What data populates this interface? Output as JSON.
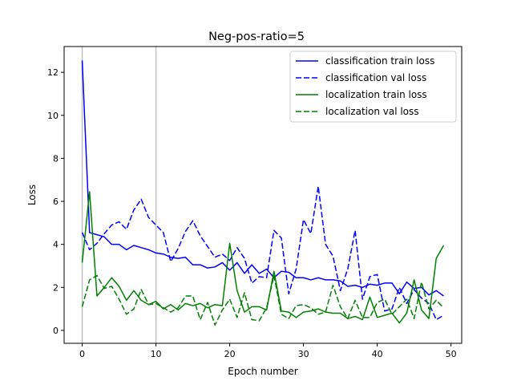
{
  "chart_data": {
    "type": "line",
    "title": "Neg-pos-ratio=5",
    "xlabel": "Epoch number",
    "ylabel": "Loss",
    "xlim": [
      -2.45,
      51.45
    ],
    "ylim": [
      -0.6,
      13.2
    ],
    "xticks": [
      0,
      10,
      20,
      30,
      40,
      50
    ],
    "yticks": [
      0,
      2,
      4,
      6,
      8,
      10,
      12
    ],
    "xtick_labels": [
      "0",
      "10",
      "20",
      "30",
      "40",
      "50"
    ],
    "ytick_labels": [
      "0",
      "2",
      "4",
      "6",
      "8",
      "10",
      "12"
    ],
    "vlines": [
      0,
      10
    ],
    "grid": false,
    "legend_position": "top-right",
    "x": [
      0,
      1,
      2,
      3,
      4,
      5,
      6,
      7,
      8,
      9,
      10,
      11,
      12,
      13,
      14,
      15,
      16,
      17,
      18,
      19,
      20,
      21,
      22,
      23,
      24,
      25,
      26,
      27,
      28,
      29,
      30,
      31,
      32,
      33,
      34,
      35,
      36,
      37,
      38,
      39,
      40,
      41,
      42,
      43,
      44,
      45,
      46,
      47,
      48,
      49
    ],
    "series": [
      {
        "name": "classification train loss",
        "color": "#0000ff",
        "dash": "solid",
        "values": [
          12.55,
          4.55,
          4.45,
          4.35,
          4.0,
          4.0,
          3.75,
          3.95,
          3.85,
          3.75,
          3.6,
          3.55,
          3.4,
          3.35,
          3.4,
          3.05,
          3.05,
          2.9,
          2.95,
          3.15,
          2.8,
          3.15,
          2.65,
          3.05,
          2.65,
          2.85,
          2.45,
          2.75,
          2.7,
          2.45,
          2.45,
          2.35,
          2.45,
          2.35,
          2.35,
          2.3,
          2.05,
          2.1,
          2.0,
          2.15,
          2.1,
          2.2,
          2.2,
          1.7,
          2.25,
          1.95,
          2.0,
          1.65,
          1.85,
          1.6
        ]
      },
      {
        "name": "classification val loss",
        "color": "#0000ff",
        "dash": "dashed",
        "values": [
          4.55,
          3.75,
          4.05,
          4.5,
          4.9,
          5.05,
          4.7,
          5.6,
          6.1,
          5.25,
          4.9,
          4.55,
          3.2,
          3.8,
          4.6,
          5.1,
          4.4,
          3.9,
          3.4,
          3.55,
          3.25,
          3.85,
          3.35,
          2.2,
          2.5,
          2.45,
          4.65,
          4.3,
          1.7,
          2.85,
          5.15,
          4.5,
          6.7,
          4.0,
          3.45,
          1.85,
          2.85,
          4.65,
          1.45,
          2.5,
          2.6,
          0.9,
          1.0,
          2.0,
          1.25,
          1.9,
          1.5,
          1.25,
          0.5,
          0.7
        ]
      },
      {
        "name": "localization train loss",
        "color": "#008000",
        "dash": "solid",
        "values": [
          3.15,
          6.45,
          1.6,
          2.0,
          2.45,
          2.05,
          1.4,
          1.85,
          1.4,
          1.2,
          1.35,
          1.0,
          1.2,
          0.95,
          1.25,
          1.15,
          1.25,
          1.05,
          1.2,
          1.15,
          4.05,
          1.85,
          0.85,
          1.1,
          1.1,
          0.95,
          2.75,
          0.9,
          0.85,
          0.6,
          0.85,
          0.9,
          1.0,
          0.85,
          0.8,
          0.8,
          0.55,
          0.65,
          0.5,
          1.55,
          0.6,
          0.7,
          0.8,
          0.35,
          0.8,
          2.35,
          0.95,
          0.55,
          3.35,
          3.95
        ]
      },
      {
        "name": "localization val loss",
        "color": "#008000",
        "dash": "dashed",
        "values": [
          1.1,
          2.35,
          2.55,
          1.95,
          2.05,
          1.45,
          0.75,
          1.0,
          1.9,
          1.2,
          1.25,
          1.05,
          0.85,
          1.05,
          1.6,
          1.6,
          0.5,
          1.3,
          0.25,
          0.95,
          1.45,
          0.6,
          1.75,
          0.5,
          0.45,
          1.05,
          2.55,
          0.75,
          0.55,
          1.15,
          1.2,
          1.05,
          0.75,
          0.85,
          2.1,
          1.1,
          0.55,
          1.4,
          0.6,
          0.6,
          1.3,
          1.45,
          0.75,
          1.1,
          1.45,
          0.55,
          2.25,
          1.0,
          1.4,
          1.05
        ]
      }
    ]
  }
}
